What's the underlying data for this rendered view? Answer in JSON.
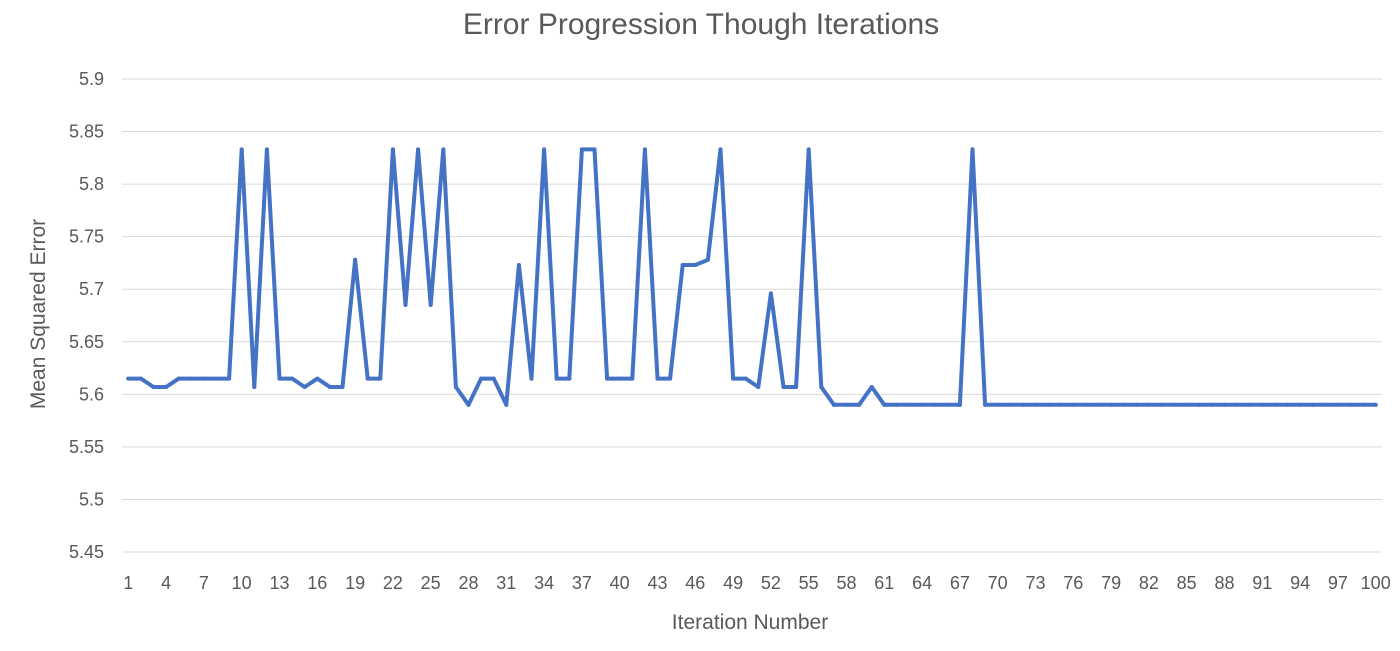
{
  "chart_data": {
    "type": "line",
    "title": "Error Progression Though Iterations",
    "xlabel": "Iteration Number",
    "ylabel": "Mean Squared Error",
    "ylim": [
      5.45,
      5.9
    ],
    "yticks": [
      "5.9",
      "5.85",
      "5.8",
      "5.75",
      "5.7",
      "5.65",
      "5.6",
      "5.55",
      "5.5",
      "5.45"
    ],
    "ytick_values": [
      5.9,
      5.85,
      5.8,
      5.75,
      5.7,
      5.65,
      5.6,
      5.55,
      5.5,
      5.45
    ],
    "xticks": [
      "1",
      "4",
      "7",
      "10",
      "13",
      "16",
      "19",
      "22",
      "25",
      "28",
      "31",
      "34",
      "37",
      "40",
      "43",
      "46",
      "49",
      "52",
      "55",
      "58",
      "61",
      "64",
      "67",
      "70",
      "73",
      "76",
      "79",
      "82",
      "85",
      "88",
      "91",
      "94",
      "97",
      "100"
    ],
    "grid": true,
    "x": [
      1,
      2,
      3,
      4,
      5,
      6,
      7,
      8,
      9,
      10,
      11,
      12,
      13,
      14,
      15,
      16,
      17,
      18,
      19,
      20,
      21,
      22,
      23,
      24,
      25,
      26,
      27,
      28,
      29,
      30,
      31,
      32,
      33,
      34,
      35,
      36,
      37,
      38,
      39,
      40,
      41,
      42,
      43,
      44,
      45,
      46,
      47,
      48,
      49,
      50,
      51,
      52,
      53,
      54,
      55,
      56,
      57,
      58,
      59,
      60,
      61,
      62,
      63,
      64,
      65,
      66,
      67,
      68,
      69,
      70,
      71,
      72,
      73,
      74,
      75,
      76,
      77,
      78,
      79,
      80,
      81,
      82,
      83,
      84,
      85,
      86,
      87,
      88,
      89,
      90,
      91,
      92,
      93,
      94,
      95,
      96,
      97,
      98,
      99,
      100
    ],
    "series": [
      {
        "color": "#4472c4",
        "values": [
          5.615,
          5.615,
          5.607,
          5.607,
          5.615,
          5.615,
          5.615,
          5.615,
          5.615,
          5.833,
          5.607,
          5.833,
          5.615,
          5.615,
          5.607,
          5.615,
          5.607,
          5.607,
          5.728,
          5.615,
          5.615,
          5.833,
          5.685,
          5.833,
          5.685,
          5.833,
          5.607,
          5.59,
          5.615,
          5.615,
          5.59,
          5.723,
          5.615,
          5.833,
          5.615,
          5.615,
          5.833,
          5.833,
          5.615,
          5.615,
          5.615,
          5.833,
          5.615,
          5.615,
          5.723,
          5.723,
          5.728,
          5.833,
          5.615,
          5.615,
          5.607,
          5.696,
          5.607,
          5.607,
          5.833,
          5.607,
          5.59,
          5.59,
          5.59,
          5.607,
          5.59,
          5.59,
          5.59,
          5.59,
          5.59,
          5.59,
          5.59,
          5.833,
          5.59,
          5.59,
          5.59,
          5.59,
          5.59,
          5.59,
          5.59,
          5.59,
          5.59,
          5.59,
          5.59,
          5.59,
          5.59,
          5.59,
          5.59,
          5.59,
          5.59,
          5.59,
          5.59,
          5.59,
          5.59,
          5.59,
          5.59,
          5.59,
          5.59,
          5.59,
          5.59,
          5.59,
          5.59,
          5.59,
          5.59,
          5.59
        ]
      }
    ]
  }
}
